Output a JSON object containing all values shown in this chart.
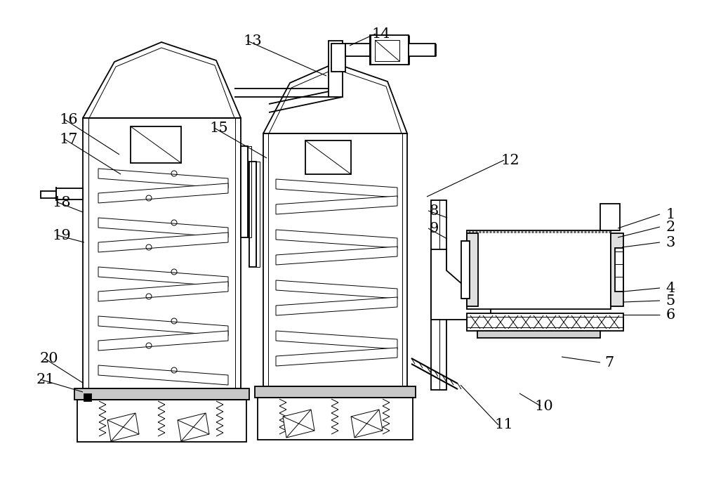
{
  "bg_color": "#ffffff",
  "line_color": "#000000",
  "lw": 1.3,
  "tlw": 0.7,
  "figsize": [
    10.0,
    6.89
  ],
  "dpi": 100
}
